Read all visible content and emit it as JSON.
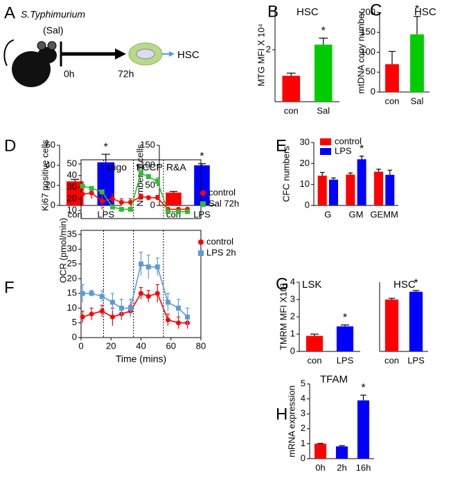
{
  "diagram": {
    "label": "A",
    "organism": "S.Typhimurium",
    "abbreviation": "(Sal)",
    "start": "0h",
    "end": "72h",
    "target": "HSC"
  },
  "chart_data": [
    {
      "type": "bar",
      "label": "B",
      "title": "HSC",
      "y_label": "MTG MFI X 10⁴",
      "categories": [
        "con",
        "Sal"
      ],
      "values": [
        1.0,
        2.2
      ],
      "errors": [
        0.1,
        0.25
      ],
      "colors": [
        "#ff0000",
        "#00cc00"
      ],
      "significance": [
        null,
        "*"
      ],
      "ylim": [
        0,
        3.6
      ],
      "yticks": [
        2
      ]
    },
    {
      "type": "bar",
      "label": "C",
      "title": "HSC",
      "y_label": "mtDNA copy number",
      "categories": [
        "con",
        "Sal"
      ],
      "values": [
        70,
        145
      ],
      "errors": [
        32,
        45
      ],
      "colors": [
        "#ff0000",
        "#00cc00"
      ],
      "significance": [
        null,
        "*"
      ],
      "ylim": [
        0,
        200
      ],
      "yticks": [
        0,
        50,
        100,
        150,
        200
      ]
    },
    {
      "type": "bar",
      "label": "D",
      "y_label": "Ki67 positive cells",
      "categories": [
        "con",
        "LPS"
      ],
      "values": [
        24,
        43
      ],
      "errors": [
        2,
        8
      ],
      "colors": [
        "#ff0000",
        "#0000ff"
      ],
      "significance": [
        null,
        "*"
      ],
      "ylim": [
        0,
        60
      ],
      "yticks": [
        0,
        20,
        40,
        60
      ]
    },
    {
      "type": "bar",
      "y_label": "Number of cells",
      "categories": [
        "con",
        "LPS"
      ],
      "values": [
        32,
        100
      ],
      "errors": [
        3,
        4
      ],
      "colors": [
        "#ff0000",
        "#0000ff"
      ],
      "significance": [
        null,
        "*"
      ],
      "ylim": [
        0,
        150
      ],
      "yticks": [
        0,
        50,
        100,
        150
      ]
    },
    {
      "type": "bar",
      "label": "E",
      "y_label": "CFC numbers",
      "categories": [
        "G",
        "GM",
        "GEMM"
      ],
      "series": [
        {
          "name": "control",
          "color": "#ff0000",
          "values": [
            14.2,
            14.7,
            16.1
          ],
          "errors": [
            1.5,
            0.8,
            1.2
          ]
        },
        {
          "name": "LPS",
          "color": "#0000ff",
          "values": [
            12.3,
            22.0,
            14.6
          ],
          "errors": [
            0.8,
            1.5,
            2.2
          ],
          "significance": [
            null,
            "*",
            null
          ]
        }
      ],
      "ylim": [
        0,
        30
      ],
      "yticks": [
        0,
        10,
        20,
        30
      ]
    },
    {
      "type": "line",
      "label": "F",
      "x": [
        1,
        7,
        14,
        21,
        27,
        33,
        40,
        45,
        51,
        58,
        65,
        71
      ],
      "xlim": [
        0,
        80
      ],
      "events": [
        {
          "label": "oligo",
          "x": 15
        },
        {
          "label": "FCCP",
          "x": 35
        },
        {
          "label": "R&A",
          "x": 55
        }
      ],
      "series": [
        {
          "name": "control",
          "color": "#ff0000",
          "marker": "circle",
          "values": [
            24,
            25,
            18,
            20,
            17,
            17,
            22,
            21,
            21,
            11,
            11,
            11
          ],
          "errors": [
            4,
            5,
            7,
            4,
            3,
            3,
            2,
            1.5,
            2,
            1.5,
            1.5,
            1.5
          ]
        },
        {
          "name": "Sal 72h",
          "color": "#33bb33",
          "marker": "square",
          "values": [
            31,
            29,
            26,
            13,
            11,
            11,
            42,
            39,
            35,
            9,
            9,
            9
          ],
          "errors": [
            1.5,
            1,
            1.5,
            1,
            0.5,
            0.5,
            3,
            2,
            3,
            1,
            1,
            0.5
          ]
        }
      ],
      "ylim": [
        3,
        50
      ],
      "yticks": [
        10,
        20,
        30,
        40,
        50
      ]
    },
    {
      "type": "line",
      "y_label": "OCR (pmol/min)",
      "x_label": "Time (mins)",
      "x": [
        1,
        7,
        14,
        21,
        27,
        33,
        40,
        45,
        51,
        58,
        65,
        71
      ],
      "xlim": [
        0,
        80
      ],
      "xticks": [
        0,
        20,
        40,
        60,
        80
      ],
      "series": [
        {
          "name": "control",
          "color": "#ff0000",
          "marker": "circle",
          "values": [
            7,
            8,
            9,
            7,
            8,
            9,
            15,
            14,
            15,
            6,
            5,
            5
          ],
          "errors": [
            2,
            2,
            2,
            3,
            2,
            2,
            2,
            2,
            3,
            2,
            2,
            2
          ]
        },
        {
          "name": "LPS 2h",
          "color": "#5b9bd5",
          "marker": "square",
          "values": [
            15,
            15,
            14,
            12,
            10,
            10,
            25,
            24,
            24,
            12,
            10,
            7
          ],
          "errors": [
            3,
            1,
            2,
            3,
            3,
            3,
            4,
            4,
            3,
            3,
            3,
            3
          ]
        }
      ],
      "ylim": [
        0,
        35
      ],
      "yticks": [
        0,
        5,
        10,
        15,
        20,
        25,
        30,
        35
      ]
    },
    {
      "type": "bar",
      "label": "G",
      "title": "LSK",
      "y_label": "TMRM MFI X10³",
      "categories": [
        "con",
        "LPS"
      ],
      "values": [
        0.9,
        1.45
      ],
      "errors": [
        0.1,
        0.08
      ],
      "colors": [
        "#ff0000",
        "#0000ff"
      ],
      "significance": [
        null,
        "*"
      ],
      "ylim": [
        0,
        4
      ],
      "yticks": [
        0,
        1,
        2,
        3,
        4
      ]
    },
    {
      "type": "bar",
      "title": "HSC",
      "categories": [
        "con",
        "LPS"
      ],
      "values": [
        3.0,
        3.45
      ],
      "errors": [
        0.07,
        0.07
      ],
      "colors": [
        "#ff0000",
        "#0000ff"
      ],
      "significance": [
        null,
        "*"
      ],
      "ylim": [
        0,
        4
      ]
    },
    {
      "type": "bar",
      "label": "H",
      "title": "TFAM",
      "y_label": "mRNA expression",
      "categories": [
        "0h",
        "2h",
        "16h"
      ],
      "values": [
        1.0,
        0.82,
        3.9
      ],
      "errors": [
        0.02,
        0.05,
        0.35
      ],
      "colors": [
        "#ff0000",
        "#0000ff",
        "#0000ff"
      ],
      "significance": [
        null,
        null,
        "*"
      ],
      "ylim": [
        0,
        5
      ],
      "yticks": [
        0,
        1,
        2,
        3,
        4,
        5
      ]
    }
  ]
}
